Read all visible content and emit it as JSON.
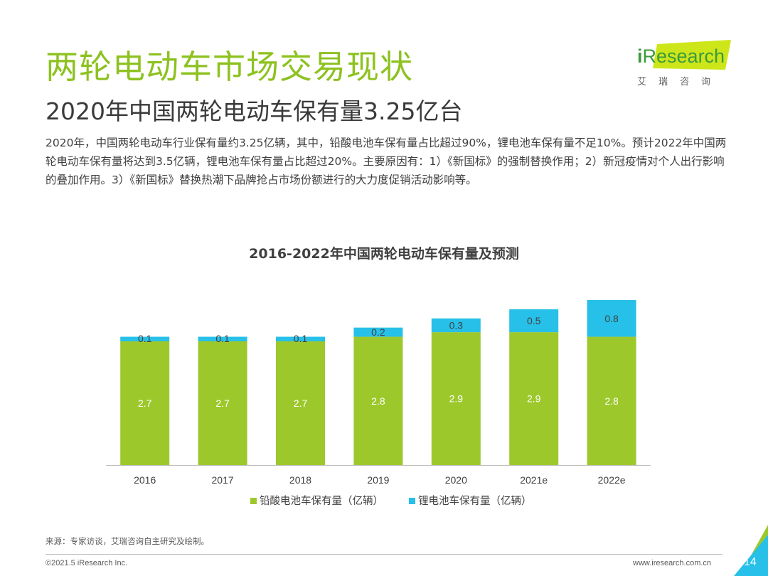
{
  "header": {
    "title": "两轮电动车市场交易现状",
    "subtitle": "2020年中国两轮电动车保有量3.25亿台"
  },
  "logo": {
    "i": "i",
    "name": "Research",
    "sub": "艾瑞咨询"
  },
  "body_text": "2020年，中国两轮电动车行业保有量约3.25亿辆，其中，铅酸电池车保有量占比超过90%，锂电池车保有量不足10%。预计2022年中国两轮电动车保有量将达到3.5亿辆，锂电池车保有量占比超过20%。主要原因有：1）《新国标》的强制替换作用；2）新冠疫情对个人出行影响的叠加作用。3）《新国标》替换热潮下品牌抢占市场份额进行的大力度促销活动影响等。",
  "chart_data": {
    "type": "bar",
    "stacked": true,
    "title": "2016-2022年中国两轮电动车保有量及预测",
    "categories": [
      "2016",
      "2017",
      "2018",
      "2019",
      "2020",
      "2021e",
      "2022e"
    ],
    "series": [
      {
        "name": "铅酸电池车保有量（亿辆）",
        "values": [
          2.7,
          2.7,
          2.7,
          2.8,
          2.9,
          2.9,
          2.8
        ],
        "color": "#9dc82c"
      },
      {
        "name": "锂电池车保有量（亿辆）",
        "values": [
          0.1,
          0.1,
          0.1,
          0.2,
          0.3,
          0.5,
          0.8
        ],
        "color": "#27c0e8"
      }
    ],
    "xlabel": "",
    "ylabel": "",
    "ylim": [
      0,
      3.6
    ],
    "legend": "bottom"
  },
  "footer": {
    "source": "来源：专家访谈，艾瑞咨询自主研究及绘制。",
    "copyright": "©2021.5 iResearch Inc.",
    "website": "www.iresearch.com.cn",
    "page": "14"
  },
  "colors": {
    "title_green": "#8dc21f",
    "corner_blue": "#27c0e8",
    "corner_green": "#9dc82c"
  }
}
